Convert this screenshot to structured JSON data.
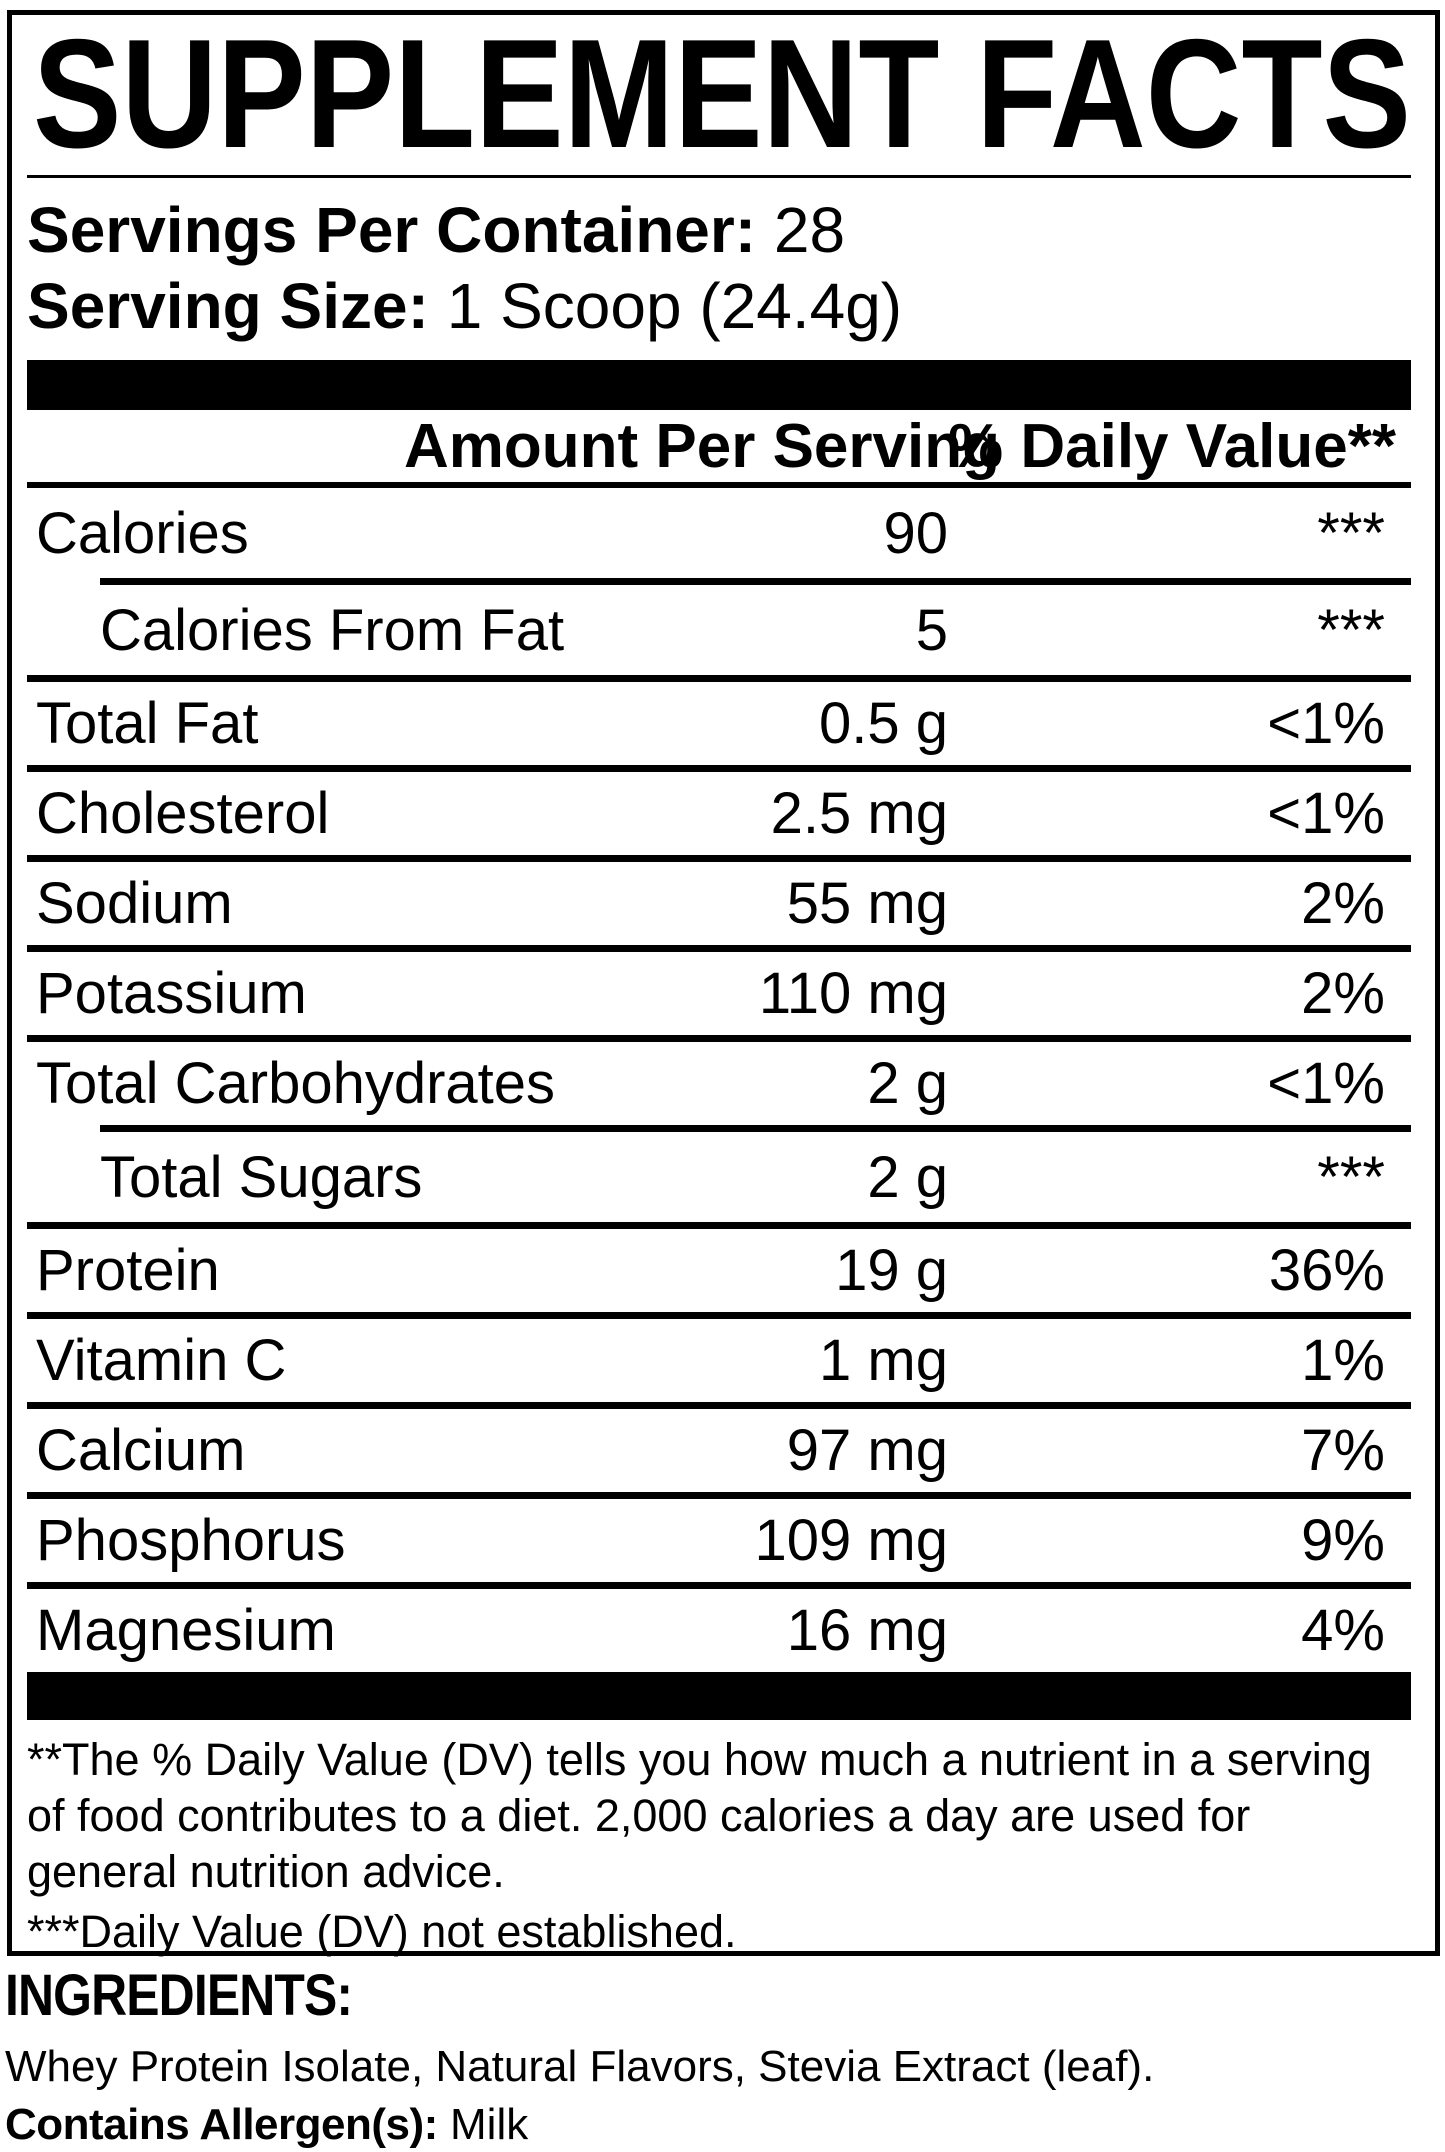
{
  "header": {
    "title": "SUPPLEMENT FACTS"
  },
  "serving_info": {
    "servings_per_container_label": "Servings Per Container:",
    "servings_per_container_value": "28",
    "serving_size_label": "Serving Size:",
    "serving_size_value": "1 Scoop (24.4g)"
  },
  "table": {
    "amount_header": "Amount Per Serving",
    "dv_header": "% Daily Value**",
    "rows": [
      {
        "name": "Calories",
        "amount": "90",
        "dv": "***"
      },
      {
        "name": "Calories From Fat",
        "amount": "5",
        "dv": "***"
      },
      {
        "name": "Total Fat",
        "amount": "0.5 g",
        "dv": "<1%"
      },
      {
        "name": "Cholesterol",
        "amount": "2.5 mg",
        "dv": "<1%"
      },
      {
        "name": "Sodium",
        "amount": "55 mg",
        "dv": "2%"
      },
      {
        "name": "Potassium",
        "amount": "110 mg",
        "dv": "2%"
      },
      {
        "name": "Total Carbohydrates",
        "amount": "2 g",
        "dv": "<1%"
      },
      {
        "name": "Total Sugars",
        "amount": "2 g",
        "dv": "***"
      },
      {
        "name": "Protein",
        "amount": "19 g",
        "dv": "36%"
      },
      {
        "name": "Vitamin C",
        "amount": "1 mg",
        "dv": "1%"
      },
      {
        "name": "Calcium",
        "amount": "97 mg",
        "dv": "7%"
      },
      {
        "name": "Phosphorus",
        "amount": "109 mg",
        "dv": "9%"
      },
      {
        "name": "Magnesium",
        "amount": "16 mg",
        "dv": "4%"
      }
    ]
  },
  "footnotes": {
    "daily_value_note": "**The % Daily Value (DV) tells you how much a nutrient in a serving of food contributes to a diet. 2,000 calories a day are used for general nutrition advice.",
    "not_established_note": "***Daily Value (DV) not established."
  },
  "ingredients": {
    "heading": "INGREDIENTS:",
    "list": "Whey Protein Isolate, Natural Flavors, Stevia Extract (leaf).",
    "allergen_label": "Contains Allergen(s):",
    "allergen_value": "Milk"
  },
  "colors": {
    "text": "#000000",
    "background": "#ffffff"
  }
}
